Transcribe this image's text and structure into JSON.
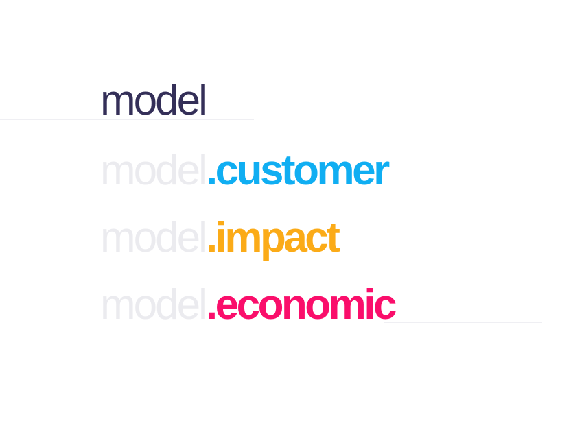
{
  "lines": [
    {
      "base": "model",
      "suffix": ""
    },
    {
      "base": "model",
      "suffix": ".customer"
    },
    {
      "base": "model",
      "suffix": ".impact"
    },
    {
      "base": "model",
      "suffix": ".economic"
    }
  ],
  "colors": {
    "primary": "#342f58",
    "faded": "#ebebef",
    "customer": "#10aef2",
    "impact": "#fbab18",
    "economic": "#fa0e6b"
  }
}
